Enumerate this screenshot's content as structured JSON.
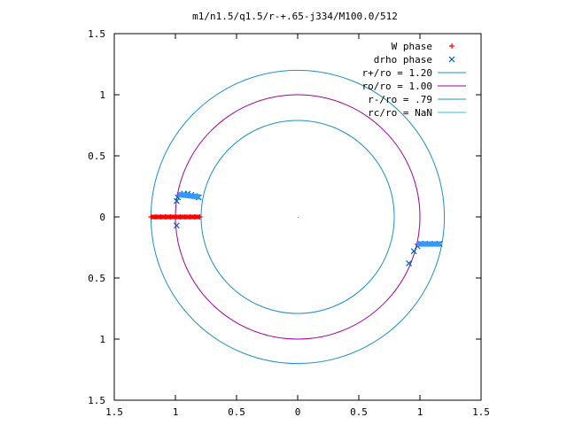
{
  "chart_data": {
    "type": "scatter",
    "title": "m1/n1.5/q1.5/r-+.65-j334/M100.0/512",
    "xlabel": "",
    "ylabel": "",
    "xlim": [
      -1.5,
      1.5
    ],
    "ylim": [
      -1.5,
      1.5
    ],
    "x_ticks": [
      -1.5,
      -1,
      -0.5,
      0,
      0.5,
      1,
      1.5
    ],
    "y_ticks": [
      -1.5,
      -1,
      -0.5,
      0,
      0.5,
      1,
      1.5
    ],
    "x_tick_labels": [
      "1.5",
      "1",
      "0.5",
      "0",
      "0.5",
      "1",
      "1.5"
    ],
    "y_tick_labels": [
      "1.5",
      "1",
      "0.5",
      "0",
      "0.5",
      "1",
      "1.5"
    ],
    "grid": false,
    "legend_position": "top-right",
    "series": [
      {
        "name": "W phase",
        "marker": "+",
        "color": "#ff0000",
        "points": [
          [
            -1.2,
            0.0
          ],
          [
            -1.16,
            0.0
          ],
          [
            -1.12,
            0.0
          ],
          [
            -1.08,
            0.0
          ],
          [
            -1.04,
            0.0
          ],
          [
            -1.0,
            0.0
          ],
          [
            -0.96,
            0.0
          ],
          [
            -0.92,
            0.0
          ],
          [
            -0.88,
            0.0
          ],
          [
            -0.84,
            0.0
          ],
          [
            -0.8,
            0.0
          ]
        ]
      },
      {
        "name": "drho phase",
        "marker": "x",
        "color": "#0060ad",
        "points": [
          [
            -0.99,
            -0.07
          ],
          [
            -0.99,
            0.13
          ],
          [
            -0.98,
            0.16
          ],
          [
            -0.96,
            0.18
          ],
          [
            -0.93,
            0.19
          ],
          [
            -0.9,
            0.19
          ],
          [
            -0.87,
            0.18
          ],
          [
            -0.84,
            0.17
          ],
          [
            -0.81,
            0.16
          ],
          [
            0.91,
            -0.38
          ],
          [
            0.95,
            -0.28
          ],
          [
            0.98,
            -0.24
          ],
          [
            1.01,
            -0.22
          ],
          [
            1.04,
            -0.22
          ],
          [
            1.08,
            -0.22
          ],
          [
            1.12,
            -0.22
          ],
          [
            1.16,
            -0.22
          ]
        ]
      },
      {
        "name": "r+/ro = 1.20",
        "type": "circle",
        "radius": 1.2,
        "color": "#1e90c8"
      },
      {
        "name": "ro/ro = 1.00",
        "type": "circle",
        "radius": 1.0,
        "color": "#a000a0"
      },
      {
        "name": "r-/ro =  .79",
        "type": "circle",
        "radius": 0.79,
        "color": "#1e90c8"
      },
      {
        "name": "rc/ro = NaN",
        "type": "circle",
        "radius": null,
        "color": "#30c0d0"
      }
    ]
  }
}
